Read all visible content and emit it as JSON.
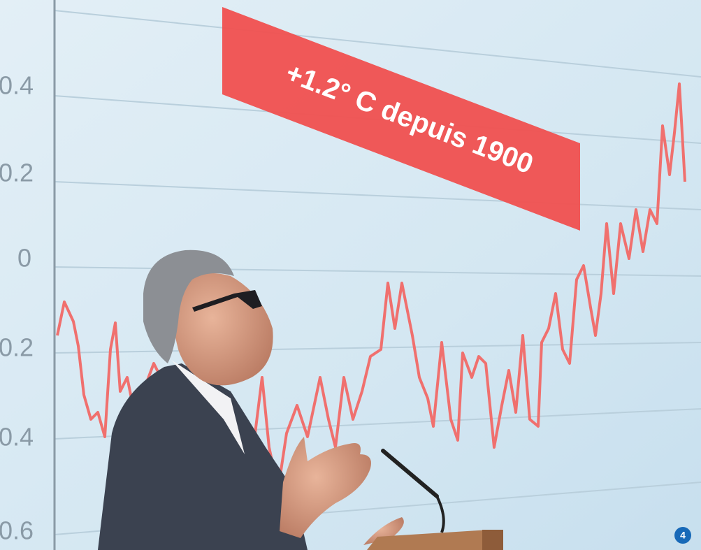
{
  "screen": {
    "banner": "+1.2° C depuis 1900",
    "axis_labels": [
      "0.4",
      "0.2",
      "0",
      "0.2",
      "0.4",
      "0.6"
    ],
    "badge": "4"
  }
}
